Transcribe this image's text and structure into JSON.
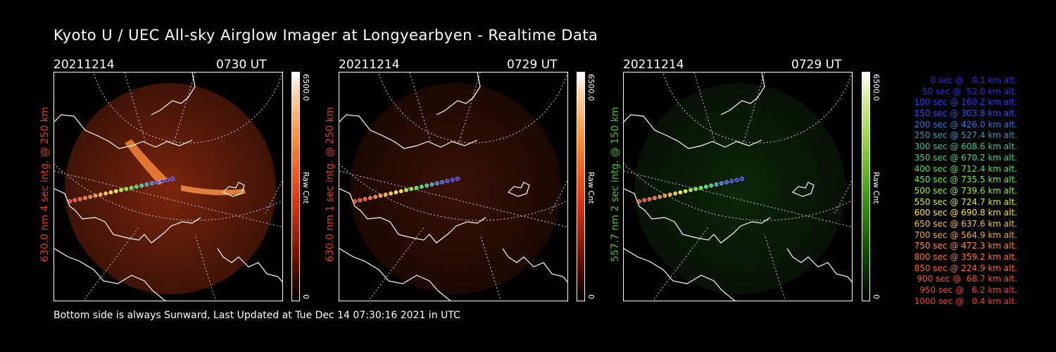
{
  "title": "Kyoto U / UEC All-sky Airglow Imager at Longyearbyen - Realtime Data",
  "footer": "Bottom side is always Sunward, Last Updated at Tue Dec 14 07:30:16 2021 in UTC",
  "panels": [
    {
      "date": "20211214",
      "time": "0730 UT",
      "ylabel": "630.0 nm 4 sec intg. @ 250 km",
      "ylabel_color": "#e83a1a",
      "cbar_max": "6500.0",
      "cbar_unit": "Raw Cnt",
      "cbar_min": "0",
      "colormap": "red",
      "emission_level": 0.85
    },
    {
      "date": "20211214",
      "time": "0729 UT",
      "ylabel": "630.0 nm 1 sec intg. @ 250 km",
      "ylabel_color": "#e83a1a",
      "cbar_max": "6500.0",
      "cbar_unit": "Raw Cnt",
      "cbar_min": "0",
      "colormap": "red",
      "emission_level": 0.25
    },
    {
      "date": "20211214",
      "time": "0729 UT",
      "ylabel": "557.7 nm 2 sec intg. @ 150 km",
      "ylabel_color": "#3ec81e",
      "cbar_max": "6500.0",
      "cbar_unit": "Raw Cnt",
      "cbar_min": "0",
      "colormap": "green",
      "emission_level": 0.35
    }
  ],
  "legend": [
    {
      "text": "0 sec @   0.1 km alt.",
      "color": "#2a2aff"
    },
    {
      "text": "50 sec @  52.0 km alt.",
      "color": "#2a2aff"
    },
    {
      "text": "100 sec @ 160.2 km alt.",
      "color": "#2a3aff"
    },
    {
      "text": "150 sec @ 303.8 km alt.",
      "color": "#2a55f0"
    },
    {
      "text": "200 sec @ 426.0 km alt.",
      "color": "#2a7ae0"
    },
    {
      "text": "250 sec @ 527.4 km alt.",
      "color": "#2aa0c8"
    },
    {
      "text": "300 sec @ 608.6 km alt.",
      "color": "#2ac8a0"
    },
    {
      "text": "350 sec @ 670.2 km alt.",
      "color": "#2ae070"
    },
    {
      "text": "400 sec @ 712.4 km alt.",
      "color": "#3ef03c"
    },
    {
      "text": "450 sec @ 735.5 km alt.",
      "color": "#6cf030"
    },
    {
      "text": "500 sec @ 739.6 km alt.",
      "color": "#a0f028"
    },
    {
      "text": "550 sec @ 724.7 km alt.",
      "color": "#d8f020"
    },
    {
      "text": "600 sec @ 690.8 km alt.",
      "color": "#ffe620"
    },
    {
      "text": "650 sec @ 637.6 km alt.",
      "color": "#ffc820"
    },
    {
      "text": "700 sec @ 564.9 km alt.",
      "color": "#ffaa20"
    },
    {
      "text": "750 sec @ 472.3 km alt.",
      "color": "#ff9020"
    },
    {
      "text": "800 sec @ 359.2 km alt.",
      "color": "#ff7820"
    },
    {
      "text": "850 sec @ 224.9 km alt.",
      "color": "#ff6420"
    },
    {
      "text": "900 sec @  68.7 km alt.",
      "color": "#ff5020"
    },
    {
      "text": "950 sec @   6.2 km alt.",
      "color": "#ff4020"
    },
    {
      "text": "1000 sec @   0.4 km alt.",
      "color": "#ff3a20"
    }
  ]
}
